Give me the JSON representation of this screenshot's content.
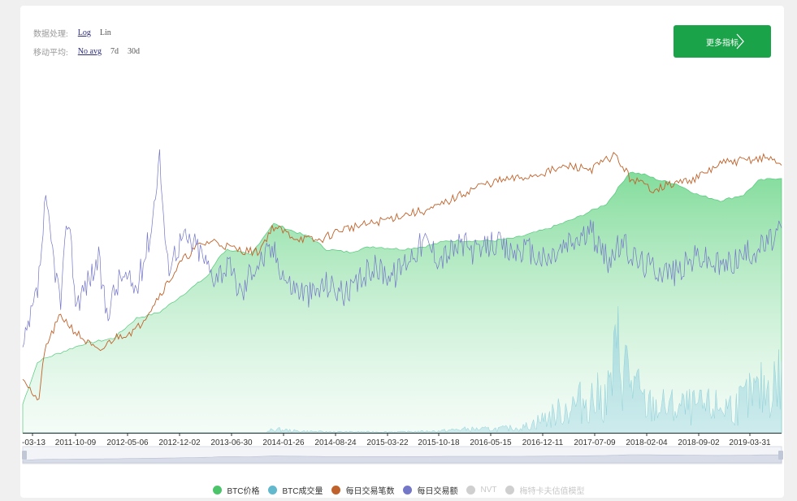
{
  "controls": {
    "processing": {
      "label": "数据处理:",
      "options": [
        "Log",
        "Lin"
      ],
      "active": "Log"
    },
    "moving_avg": {
      "label": "移动平均:",
      "options": [
        "No avg",
        "7d",
        "30d"
      ],
      "active": "No avg"
    }
  },
  "more_button": {
    "label": "更多指标"
  },
  "colors": {
    "price": "#4cc46a",
    "volume": "#7cc8d4",
    "tx_count": "#c0622b",
    "tx_value": "#7476c8",
    "disabled": "#cfcfcf"
  },
  "chart_data": {
    "type": "line",
    "scale": "log",
    "x_ticks": [
      "-03-13",
      "2011-10-09",
      "2012-05-06",
      "2012-12-02",
      "2013-06-30",
      "2014-01-26",
      "2014-08-24",
      "2015-03-22",
      "2015-10-18",
      "2016-05-15",
      "2016-12-11",
      "2017-07-09",
      "2018-02-04",
      "2018-09-02",
      "2019-03-31"
    ],
    "y_axis_shown": false,
    "series": [
      {
        "name": "BTC价格",
        "key": "price",
        "type": "area",
        "enabled": true,
        "points": [
          [
            0,
            0.1
          ],
          [
            0.02,
            0.25
          ],
          [
            0.05,
            0.28
          ],
          [
            0.08,
            0.31
          ],
          [
            0.12,
            0.33
          ],
          [
            0.15,
            0.4
          ],
          [
            0.18,
            0.42
          ],
          [
            0.22,
            0.5
          ],
          [
            0.245,
            0.55
          ],
          [
            0.26,
            0.62
          ],
          [
            0.27,
            0.64
          ],
          [
            0.3,
            0.62
          ],
          [
            0.33,
            0.73
          ],
          [
            0.35,
            0.71
          ],
          [
            0.38,
            0.68
          ],
          [
            0.4,
            0.64
          ],
          [
            0.43,
            0.63
          ],
          [
            0.46,
            0.65
          ],
          [
            0.5,
            0.64
          ],
          [
            0.53,
            0.65
          ],
          [
            0.56,
            0.67
          ],
          [
            0.58,
            0.67
          ],
          [
            0.62,
            0.67
          ],
          [
            0.65,
            0.68
          ],
          [
            0.69,
            0.71
          ],
          [
            0.73,
            0.75
          ],
          [
            0.77,
            0.8
          ],
          [
            0.8,
            0.91
          ],
          [
            0.82,
            0.9
          ],
          [
            0.84,
            0.88
          ],
          [
            0.86,
            0.87
          ],
          [
            0.89,
            0.83
          ],
          [
            0.92,
            0.81
          ],
          [
            0.95,
            0.83
          ],
          [
            0.97,
            0.88
          ],
          [
            1.0,
            0.89
          ]
        ]
      },
      {
        "name": "BTC成交量",
        "key": "volume",
        "type": "area",
        "enabled": true,
        "points": [
          [
            0,
            0.0
          ],
          [
            0.32,
            0.0
          ],
          [
            0.33,
            0.02
          ],
          [
            0.36,
            0.01
          ],
          [
            0.4,
            0.005
          ],
          [
            0.5,
            0.005
          ],
          [
            0.55,
            0.01
          ],
          [
            0.58,
            0.02
          ],
          [
            0.62,
            0.02
          ],
          [
            0.66,
            0.03
          ],
          [
            0.7,
            0.1
          ],
          [
            0.74,
            0.18
          ],
          [
            0.77,
            0.2
          ],
          [
            0.785,
            0.45
          ],
          [
            0.8,
            0.3
          ],
          [
            0.82,
            0.15
          ],
          [
            0.86,
            0.14
          ],
          [
            0.9,
            0.14
          ],
          [
            0.94,
            0.15
          ],
          [
            0.97,
            0.22
          ],
          [
            1.0,
            0.3
          ]
        ]
      },
      {
        "name": "每日交易笔数",
        "key": "tx_count",
        "type": "line",
        "enabled": true,
        "points": [
          [
            0,
            0.2
          ],
          [
            0.02,
            0.1
          ],
          [
            0.03,
            0.3
          ],
          [
            0.05,
            0.41
          ],
          [
            0.07,
            0.35
          ],
          [
            0.1,
            0.28
          ],
          [
            0.12,
            0.33
          ],
          [
            0.15,
            0.36
          ],
          [
            0.18,
            0.48
          ],
          [
            0.21,
            0.6
          ],
          [
            0.23,
            0.65
          ],
          [
            0.25,
            0.67
          ],
          [
            0.28,
            0.64
          ],
          [
            0.31,
            0.63
          ],
          [
            0.33,
            0.72
          ],
          [
            0.36,
            0.68
          ],
          [
            0.39,
            0.67
          ],
          [
            0.42,
            0.71
          ],
          [
            0.46,
            0.73
          ],
          [
            0.5,
            0.76
          ],
          [
            0.54,
            0.78
          ],
          [
            0.57,
            0.82
          ],
          [
            0.6,
            0.86
          ],
          [
            0.63,
            0.88
          ],
          [
            0.66,
            0.89
          ],
          [
            0.69,
            0.91
          ],
          [
            0.72,
            0.93
          ],
          [
            0.75,
            0.92
          ],
          [
            0.78,
            0.97
          ],
          [
            0.8,
            0.89
          ],
          [
            0.83,
            0.85
          ],
          [
            0.86,
            0.87
          ],
          [
            0.89,
            0.89
          ],
          [
            0.92,
            0.94
          ],
          [
            0.95,
            0.95
          ],
          [
            0.98,
            0.96
          ],
          [
            1.0,
            0.94
          ]
        ]
      },
      {
        "name": "每日交易额",
        "key": "tx_value",
        "type": "line",
        "enabled": true,
        "points": [
          [
            0,
            0.28
          ],
          [
            0.02,
            0.5
          ],
          [
            0.03,
            0.8
          ],
          [
            0.04,
            0.62
          ],
          [
            0.05,
            0.45
          ],
          [
            0.06,
            0.78
          ],
          [
            0.07,
            0.45
          ],
          [
            0.08,
            0.5
          ],
          [
            0.1,
            0.6
          ],
          [
            0.11,
            0.42
          ],
          [
            0.13,
            0.55
          ],
          [
            0.15,
            0.5
          ],
          [
            0.17,
            0.72
          ],
          [
            0.18,
            0.98
          ],
          [
            0.19,
            0.58
          ],
          [
            0.21,
            0.68
          ],
          [
            0.23,
            0.65
          ],
          [
            0.25,
            0.55
          ],
          [
            0.27,
            0.58
          ],
          [
            0.29,
            0.48
          ],
          [
            0.3,
            0.57
          ],
          [
            0.33,
            0.64
          ],
          [
            0.35,
            0.52
          ],
          [
            0.38,
            0.48
          ],
          [
            0.4,
            0.52
          ],
          [
            0.43,
            0.48
          ],
          [
            0.46,
            0.58
          ],
          [
            0.49,
            0.55
          ],
          [
            0.51,
            0.62
          ],
          [
            0.53,
            0.67
          ],
          [
            0.55,
            0.61
          ],
          [
            0.58,
            0.66
          ],
          [
            0.6,
            0.62
          ],
          [
            0.62,
            0.67
          ],
          [
            0.64,
            0.63
          ],
          [
            0.66,
            0.64
          ],
          [
            0.69,
            0.6
          ],
          [
            0.72,
            0.66
          ],
          [
            0.75,
            0.7
          ],
          [
            0.77,
            0.6
          ],
          [
            0.79,
            0.66
          ],
          [
            0.81,
            0.6
          ],
          [
            0.83,
            0.58
          ],
          [
            0.86,
            0.56
          ],
          [
            0.89,
            0.62
          ],
          [
            0.92,
            0.58
          ],
          [
            0.95,
            0.62
          ],
          [
            0.98,
            0.66
          ],
          [
            1.0,
            0.7
          ]
        ]
      },
      {
        "name": "NVT",
        "key": "nvt",
        "type": "line",
        "enabled": false,
        "points": []
      },
      {
        "name": "梅特卡夫估值模型",
        "key": "metcalfe",
        "type": "line",
        "enabled": false,
        "points": []
      }
    ]
  }
}
